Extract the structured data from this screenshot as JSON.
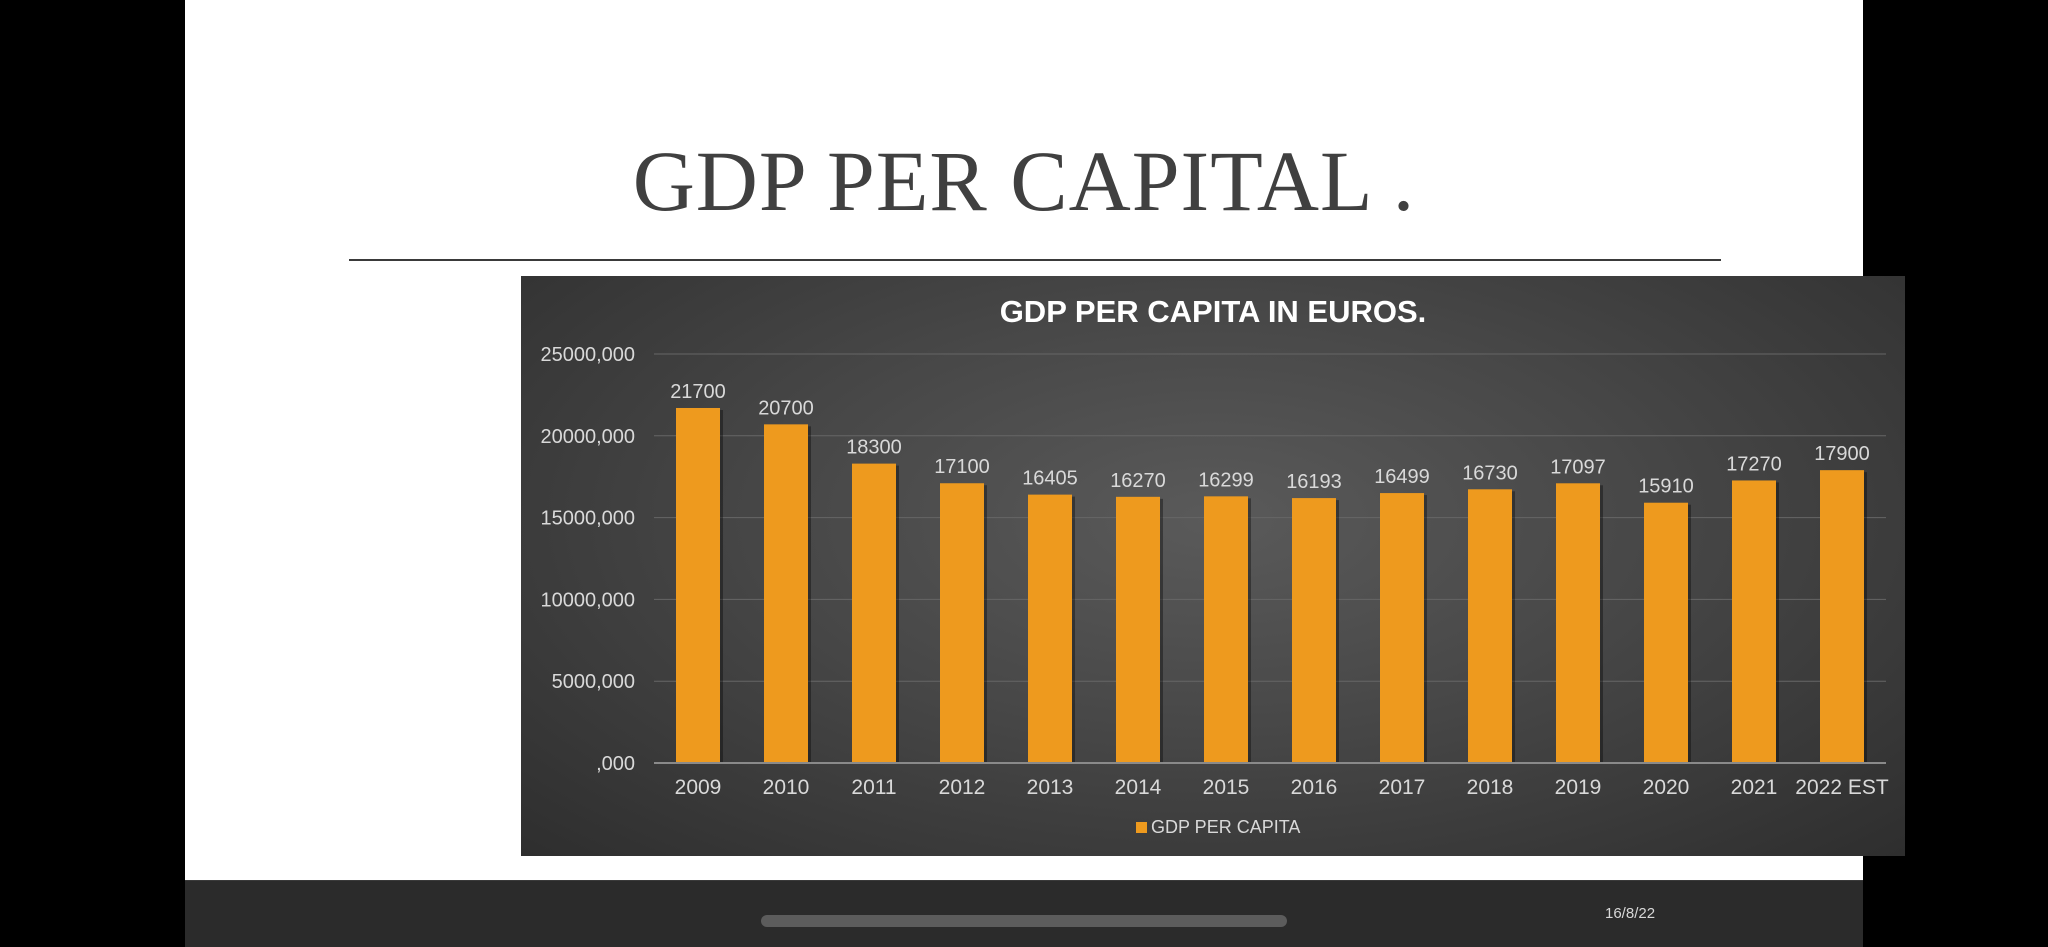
{
  "slide": {
    "title": "GDP PER CAPITAL ."
  },
  "footer": {
    "date": "16/8/22"
  },
  "colors": {
    "bar": "#ee9a1e",
    "chart_text": "#d9d9d9",
    "title_text": "#ffffff",
    "grid": "#666666"
  },
  "chart_data": {
    "type": "bar",
    "title": "GDP PER CAPITA IN EUROS.",
    "categories": [
      "2009",
      "2010",
      "2011",
      "2012",
      "2013",
      "2014",
      "2015",
      "2016",
      "2017",
      "2018",
      "2019",
      "2020",
      "2021",
      "2022 EST"
    ],
    "series": [
      {
        "name": "GDP PER CAPITA",
        "values": [
          21700,
          20700,
          18300,
          17100,
          16405,
          16270,
          16299,
          16193,
          16499,
          16730,
          17097,
          15910,
          17270,
          17900
        ],
        "data_labels": [
          "21700",
          "20700",
          "18300",
          "17100",
          "16405",
          "16270",
          "16299",
          "16193",
          "16499",
          "16730",
          "17097",
          "15910",
          "17270",
          "17900"
        ]
      }
    ],
    "ylim": [
      0,
      25000
    ],
    "yticks": [
      0,
      5000,
      10000,
      15000,
      20000,
      25000
    ],
    "ytick_labels": [
      ",000",
      "5000,000",
      "10000,000",
      "15000,000",
      "20000,000",
      "25000,000"
    ],
    "grid": true,
    "legend_position": "bottom"
  }
}
